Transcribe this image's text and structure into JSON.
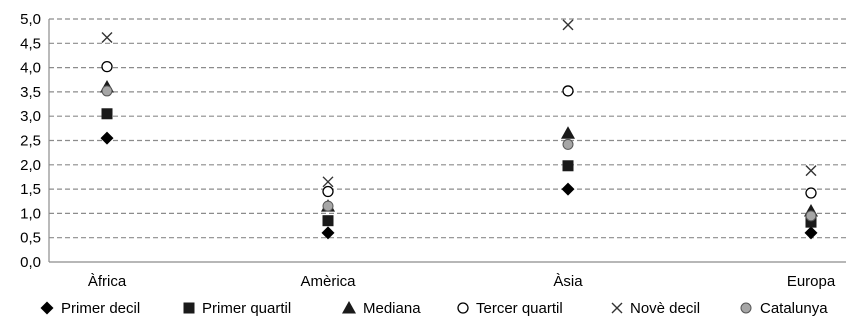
{
  "chart_data": {
    "type": "scatter",
    "categories": [
      "Àfrica",
      "Amèrica",
      "Àsia",
      "Europa"
    ],
    "ylim": [
      0,
      5
    ],
    "yticks": [
      "0,0",
      "0,5",
      "1,0",
      "1,5",
      "2,0",
      "2,5",
      "3,0",
      "3,5",
      "4,0",
      "4,5",
      "5,0"
    ],
    "grid": "horizontal dashed",
    "legend_position": "bottom",
    "series": [
      {
        "name": "Primer decil",
        "marker": "diamond",
        "color": "#000000",
        "values": [
          2.55,
          0.6,
          1.5,
          0.6
        ]
      },
      {
        "name": "Primer quartil",
        "marker": "square",
        "color": "#1a1a1a",
        "values": [
          3.05,
          0.85,
          1.98,
          0.82
        ]
      },
      {
        "name": "Mediana",
        "marker": "triangle",
        "color": "#1a1a1a",
        "values": [
          3.6,
          1.15,
          2.65,
          1.05
        ]
      },
      {
        "name": "Tercer quartil",
        "marker": "circle-open",
        "color": "#000000",
        "values": [
          4.02,
          1.45,
          3.52,
          1.42
        ]
      },
      {
        "name": "Novè decil",
        "marker": "cross",
        "color": "#333333",
        "values": [
          4.62,
          1.65,
          4.88,
          1.88
        ]
      },
      {
        "name": "Catalunya",
        "marker": "circle-filled",
        "color": "#a6a6a6",
        "values": [
          3.52,
          1.15,
          2.42,
          0.95
        ]
      }
    ]
  }
}
